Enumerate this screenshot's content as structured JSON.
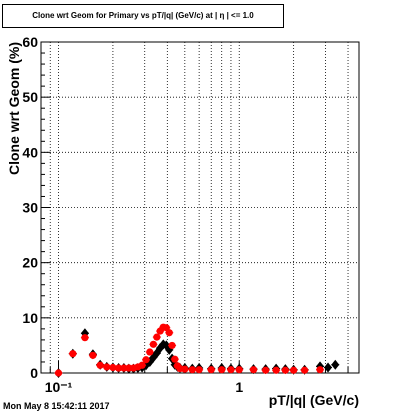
{
  "chart_data": {
    "type": "scatter",
    "title": "Clone wrt Geom for Primary vs pT/|q| (GeV/c) at | η | <= 1.0",
    "xlabel": "pT/|q| (GeV/c)",
    "ylabel": "Clone wrt Geom (%)",
    "xscale": "log",
    "xlim": [
      0.08,
      4.6
    ],
    "ylim": [
      0,
      60
    ],
    "grid": true,
    "yticks": [
      0,
      10,
      20,
      30,
      40,
      50,
      60
    ],
    "yticklabels": [
      "0",
      "10",
      "20",
      "30",
      "40",
      "50",
      "60"
    ],
    "xticks": [
      0.1,
      1
    ],
    "xticklabels": [
      "10⁻¹",
      "1"
    ],
    "series": [
      {
        "marker": "diamond",
        "color": "#000000",
        "x": [
          0.1,
          0.12,
          0.14,
          0.155,
          0.17,
          0.185,
          0.2,
          0.215,
          0.23,
          0.245,
          0.26,
          0.275,
          0.29,
          0.305,
          0.32,
          0.335,
          0.35,
          0.365,
          0.38,
          0.395,
          0.41,
          0.425,
          0.44,
          0.455,
          0.47,
          0.5,
          0.55,
          0.6,
          0.7,
          0.8,
          0.9,
          1.0,
          1.2,
          1.4,
          1.6,
          1.8,
          2.0,
          2.3,
          2.8,
          3.1,
          3.4
        ],
        "y": [
          0.0,
          3.5,
          7.2,
          3.4,
          1.5,
          1.1,
          1.0,
          0.9,
          0.9,
          0.8,
          0.8,
          0.9,
          1.0,
          1.4,
          2.0,
          2.8,
          3.6,
          4.5,
          5.2,
          5.0,
          4.2,
          2.6,
          1.5,
          1.1,
          0.9,
          0.9,
          0.8,
          0.9,
          0.8,
          0.9,
          0.8,
          0.8,
          0.7,
          0.7,
          0.8,
          0.7,
          0.6,
          0.6,
          1.2,
          1.0,
          1.5
        ]
      },
      {
        "marker": "circle",
        "color": "#ff0000",
        "x": [
          0.1,
          0.12,
          0.14,
          0.155,
          0.17,
          0.185,
          0.2,
          0.215,
          0.23,
          0.245,
          0.26,
          0.275,
          0.29,
          0.305,
          0.32,
          0.335,
          0.35,
          0.365,
          0.38,
          0.395,
          0.41,
          0.425,
          0.44,
          0.455,
          0.47,
          0.5,
          0.55,
          0.6,
          0.7,
          0.8,
          0.9,
          1.0,
          1.2,
          1.4,
          1.6,
          1.8,
          2.0,
          2.3,
          2.8
        ],
        "y": [
          0.0,
          3.5,
          6.4,
          3.2,
          1.4,
          1.1,
          1.0,
          0.9,
          0.9,
          0.9,
          0.9,
          1.1,
          1.4,
          2.4,
          3.8,
          5.2,
          6.5,
          7.6,
          8.3,
          8.2,
          7.3,
          5.0,
          2.5,
          1.3,
          0.8,
          0.7,
          0.6,
          0.6,
          0.6,
          0.6,
          0.6,
          0.6,
          0.6,
          0.5,
          0.5,
          0.5,
          0.5,
          0.5,
          0.6
        ]
      }
    ]
  },
  "footer": {
    "timestamp": "Mon May  8 15:42:11 2017"
  }
}
